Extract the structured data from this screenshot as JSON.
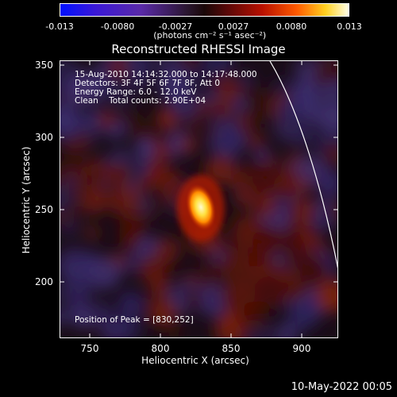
{
  "colorbar": {
    "ticks": [
      "-0.013",
      "-0.0080",
      "-0.0027",
      "0.0027",
      "0.0080",
      "0.013"
    ],
    "units": "(photons cm⁻² s⁻¹ asec⁻²)"
  },
  "title": "Reconstructed RHESSI Image",
  "info": {
    "time": "15-Aug-2010 14:14:32.000 to 14:17:48.000",
    "detectors": "Detectors: 3F 4F 5F 6F 7F 8F, Att 0",
    "energy": "Energy Range: 6.0 - 12.0 keV",
    "clean": "Clean    Total counts: 2.90E+04",
    "peak": "Position of Peak = [830,252]"
  },
  "axes": {
    "x_ticks": [
      "750",
      "800",
      "850",
      "900"
    ],
    "y_ticks": [
      "200",
      "250",
      "300",
      "350"
    ],
    "x_label": "Heliocentric X (arcsec)",
    "y_label": "Heliocentric Y (arcsec)"
  },
  "footer": "10-May-2022 00:05",
  "colors": {
    "background": "#000000",
    "limb": "#ffffff"
  }
}
